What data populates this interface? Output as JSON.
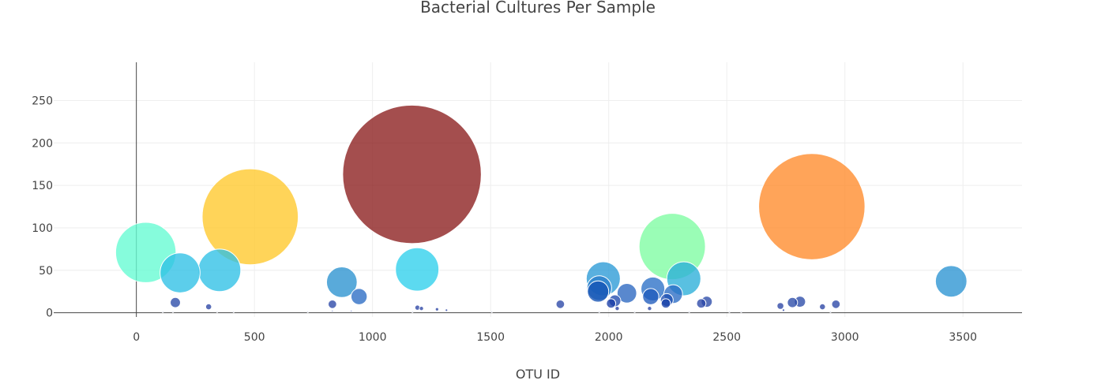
{
  "chart_data": {
    "type": "scatter",
    "title": "Bacterial Cultures Per Sample",
    "xlabel": "OTU ID",
    "ylabel": "",
    "xlim": [
      -350,
      3750
    ],
    "ylim": [
      -5,
      295
    ],
    "x_ticks": [
      0,
      500,
      1000,
      1500,
      2000,
      2500,
      3000,
      3500
    ],
    "y_ticks": [
      0,
      50,
      100,
      150,
      200,
      250
    ],
    "grid": true,
    "legend": "none",
    "series": [
      {
        "marker": "bubble",
        "points": [
          {
            "x": 40,
            "y": 71,
            "size": 71,
            "color": "#64fbd2"
          },
          {
            "x": 185,
            "y": 47,
            "size": 47,
            "color": "#2ec0e5"
          },
          {
            "x": 352,
            "y": 50,
            "size": 50,
            "color": "#2ec0e5"
          },
          {
            "x": 482,
            "y": 113,
            "size": 113,
            "color": "#ffc82a"
          },
          {
            "x": 1167,
            "y": 163,
            "size": 163,
            "color": "#8b1c1c"
          },
          {
            "x": 1189,
            "y": 51,
            "size": 51,
            "color": "#2ed0ec"
          },
          {
            "x": 870,
            "y": 36,
            "size": 36,
            "color": "#2a92cf"
          },
          {
            "x": 943,
            "y": 19,
            "size": 19,
            "color": "#2a6cc4"
          },
          {
            "x": 1977,
            "y": 40,
            "size": 40,
            "color": "#2a9ad6"
          },
          {
            "x": 1960,
            "y": 29,
            "size": 29,
            "color": "#2a7ccb"
          },
          {
            "x": 1955,
            "y": 25,
            "size": 25,
            "color": "#1552b4"
          },
          {
            "x": 2077,
            "y": 23,
            "size": 23,
            "color": "#2a66c0"
          },
          {
            "x": 2187,
            "y": 28,
            "size": 28,
            "color": "#2a70c6"
          },
          {
            "x": 2178,
            "y": 19,
            "size": 19,
            "color": "#1f5bbc"
          },
          {
            "x": 2269,
            "y": 78,
            "size": 78,
            "color": "#7dfca1"
          },
          {
            "x": 2318,
            "y": 40,
            "size": 40,
            "color": "#2aaed8"
          },
          {
            "x": 2273,
            "y": 22,
            "size": 22,
            "color": "#2a6cc4"
          },
          {
            "x": 2246,
            "y": 15,
            "size": 15,
            "color": "#1f4fb2"
          },
          {
            "x": 2242,
            "y": 11,
            "size": 11,
            "color": "#1740a8"
          },
          {
            "x": 2860,
            "y": 125,
            "size": 125,
            "color": "#ff8a2a"
          },
          {
            "x": 3450,
            "y": 37,
            "size": 37,
            "color": "#2a94d2"
          },
          {
            "x": 165,
            "y": 12,
            "size": 12,
            "color": "#2a4aa8"
          },
          {
            "x": 306,
            "y": 7,
            "size": 7,
            "color": "#2a44a4"
          },
          {
            "x": 830,
            "y": 10,
            "size": 10,
            "color": "#2a46a6"
          },
          {
            "x": 1795,
            "y": 10,
            "size": 10,
            "color": "#2a46a6"
          },
          {
            "x": 2010,
            "y": 11,
            "size": 11,
            "color": "#1a3da6"
          },
          {
            "x": 2026,
            "y": 14,
            "size": 14,
            "color": "#1f48ad"
          },
          {
            "x": 2036,
            "y": 5,
            "size": 5,
            "color": "#263ca2"
          },
          {
            "x": 2392,
            "y": 11,
            "size": 11,
            "color": "#2a46a6"
          },
          {
            "x": 2415,
            "y": 13,
            "size": 13,
            "color": "#2a4aa8"
          },
          {
            "x": 2727,
            "y": 8,
            "size": 8,
            "color": "#2a44a4"
          },
          {
            "x": 2778,
            "y": 12,
            "size": 12,
            "color": "#2a4aa8"
          },
          {
            "x": 2810,
            "y": 13,
            "size": 13,
            "color": "#2a4aa8"
          },
          {
            "x": 2905,
            "y": 7,
            "size": 7,
            "color": "#2a44a4"
          },
          {
            "x": 2962,
            "y": 10,
            "size": 10,
            "color": "#2a46a6"
          },
          {
            "x": 1190,
            "y": 6,
            "size": 6,
            "color": "#2a44a4"
          },
          {
            "x": 1207,
            "y": 5,
            "size": 5,
            "color": "#2a44a4"
          },
          {
            "x": 1273,
            "y": 4,
            "size": 4,
            "color": "#2a44a4"
          },
          {
            "x": 1313,
            "y": 3,
            "size": 3,
            "color": "#2a44a4"
          },
          {
            "x": 2173,
            "y": 5,
            "size": 5,
            "color": "#2a44a4"
          },
          {
            "x": 2740,
            "y": 3,
            "size": 3,
            "color": "#2a44a4"
          },
          {
            "x": 830,
            "y": 2,
            "size": 2,
            "color": "#2a44a4"
          },
          {
            "x": 910,
            "y": 2,
            "size": 2,
            "color": "#2a44a4"
          },
          {
            "x": 112,
            "y": 1,
            "size": 1,
            "color": "#2a44a4"
          },
          {
            "x": 155,
            "y": 1,
            "size": 1,
            "color": "#2a44a4"
          },
          {
            "x": 342,
            "y": 1,
            "size": 1,
            "color": "#2a44a4"
          },
          {
            "x": 412,
            "y": 1,
            "size": 1,
            "color": "#2a44a4"
          },
          {
            "x": 726,
            "y": 1,
            "size": 1,
            "color": "#2a44a4"
          },
          {
            "x": 1169,
            "y": 1,
            "size": 1,
            "color": "#2a44a4"
          },
          {
            "x": 1505,
            "y": 1,
            "size": 1,
            "color": "#2a44a4"
          },
          {
            "x": 1960,
            "y": 1,
            "size": 1,
            "color": "#2a44a4"
          },
          {
            "x": 2110,
            "y": 1,
            "size": 1,
            "color": "#2a44a4"
          },
          {
            "x": 2341,
            "y": 1,
            "size": 1,
            "color": "#2a44a4"
          },
          {
            "x": 2511,
            "y": 1,
            "size": 1,
            "color": "#2a44a4"
          },
          {
            "x": 2561,
            "y": 1,
            "size": 1,
            "color": "#2a44a4"
          },
          {
            "x": 2939,
            "y": 1,
            "size": 1,
            "color": "#2a44a4"
          }
        ]
      }
    ]
  }
}
